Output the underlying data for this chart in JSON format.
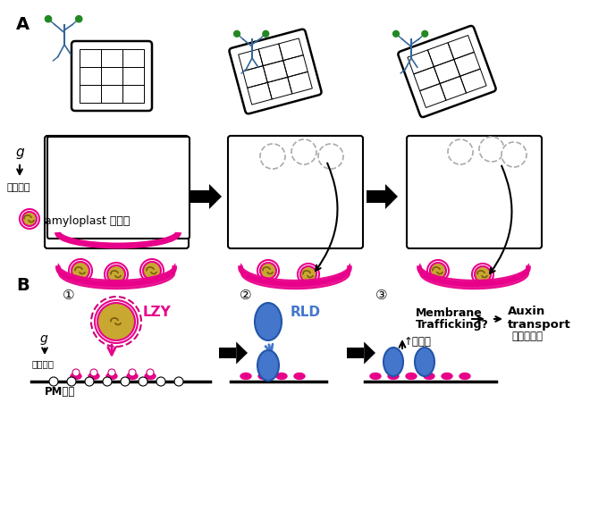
{
  "bg_color": "#ffffff",
  "label_A": "A",
  "label_B": "B",
  "title": "",
  "g_label": "g",
  "gravity_label": "重力方向",
  "amyloplast_label": "amyloplast 淥粉体",
  "pm_label": "PM质膜",
  "lzy_label": "LZY",
  "rld_label": "RLD",
  "membrane_label1": "Membrane",
  "membrane_label2": "Trafficking?",
  "membrane_cn": "膺转运",
  "auxin_label1": "Auxin",
  "auxin_label2": "transport",
  "auxin_cn": "生长素运输",
  "circle_num1": "①",
  "circle_num2": "②",
  "circle_num3": "③",
  "pink_color": "#e8008a",
  "magenta_color": "#cc0077",
  "blue_color": "#4472c4",
  "steel_blue": "#4477bb",
  "gold_color": "#c8a830",
  "dark_color": "#222222",
  "gray_color": "#888888",
  "arrow_color": "#111111"
}
